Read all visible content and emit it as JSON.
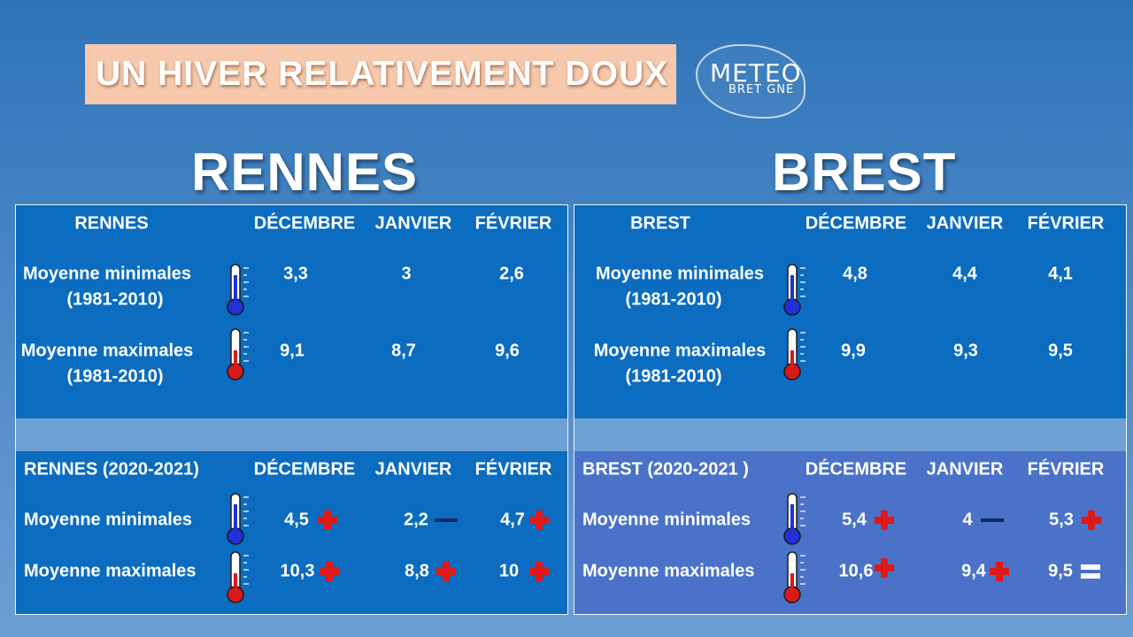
{
  "header": {
    "title": "UN HIVER RELATIVEMENT DOUX"
  },
  "logo": {
    "main": "METEO",
    "sub": "BRET  GNE"
  },
  "colors": {
    "plus": "#e01818",
    "minus": "#0a2a6b",
    "equal": "#ffffff",
    "cold": "#2230d8",
    "warm": "#d81a1a"
  },
  "cities": [
    {
      "name": "RENNES",
      "normals": {
        "label": "RENNES",
        "columns": [
          "DÉCEMBRE",
          "JANVIER",
          "FÉVRIER"
        ],
        "min": {
          "label": "Moyenne minimales",
          "period": "(1981-2010)",
          "icon": "thermometer-cold-icon",
          "values": [
            "3,3",
            "3",
            "2,6"
          ]
        },
        "max": {
          "label": "Moyenne maximales",
          "period": "(1981-2010)",
          "icon": "thermometer-hot-icon",
          "values": [
            "9,1",
            "8,7",
            "9,6"
          ]
        }
      },
      "current": {
        "label": "RENNES (2020-2021)",
        "columns": [
          "DÉCEMBRE",
          "JANVIER",
          "FÉVRIER"
        ],
        "min": {
          "label": "Moyenne minimales",
          "values": [
            "4,5",
            "2,2",
            "4,7"
          ],
          "signs": [
            "plus",
            "minus",
            "plus"
          ]
        },
        "max": {
          "label": "Moyenne maximales",
          "values": [
            "10,3",
            "8,8",
            "10"
          ],
          "signs": [
            "plus",
            "plus",
            "plus"
          ]
        }
      }
    },
    {
      "name": "BREST",
      "normals": {
        "label": "BREST",
        "columns": [
          "DÉCEMBRE",
          "JANVIER",
          "FÉVRIER"
        ],
        "min": {
          "label": "Moyenne minimales",
          "period": "(1981-2010)",
          "icon": "thermometer-cold-icon",
          "values": [
            "4,8",
            "4,4",
            "4,1"
          ]
        },
        "max": {
          "label": "Moyenne maximales",
          "period": "(1981-2010)",
          "icon": "thermometer-hot-icon",
          "values": [
            "9,9",
            "9,3",
            "9,5"
          ]
        }
      },
      "current": {
        "label": "BREST (2020-2021 )",
        "columns": [
          "DÉCEMBRE",
          "JANVIER",
          "FÉVRIER"
        ],
        "min": {
          "label": "Moyenne minimales",
          "values": [
            "5,4",
            "4",
            "5,3"
          ],
          "signs": [
            "plus",
            "minus",
            "plus"
          ]
        },
        "max": {
          "label": "Moyenne maximales",
          "values": [
            "10,6",
            "9,4",
            "9,5"
          ],
          "signs": [
            "plus",
            "plus",
            "equal"
          ]
        }
      }
    }
  ]
}
